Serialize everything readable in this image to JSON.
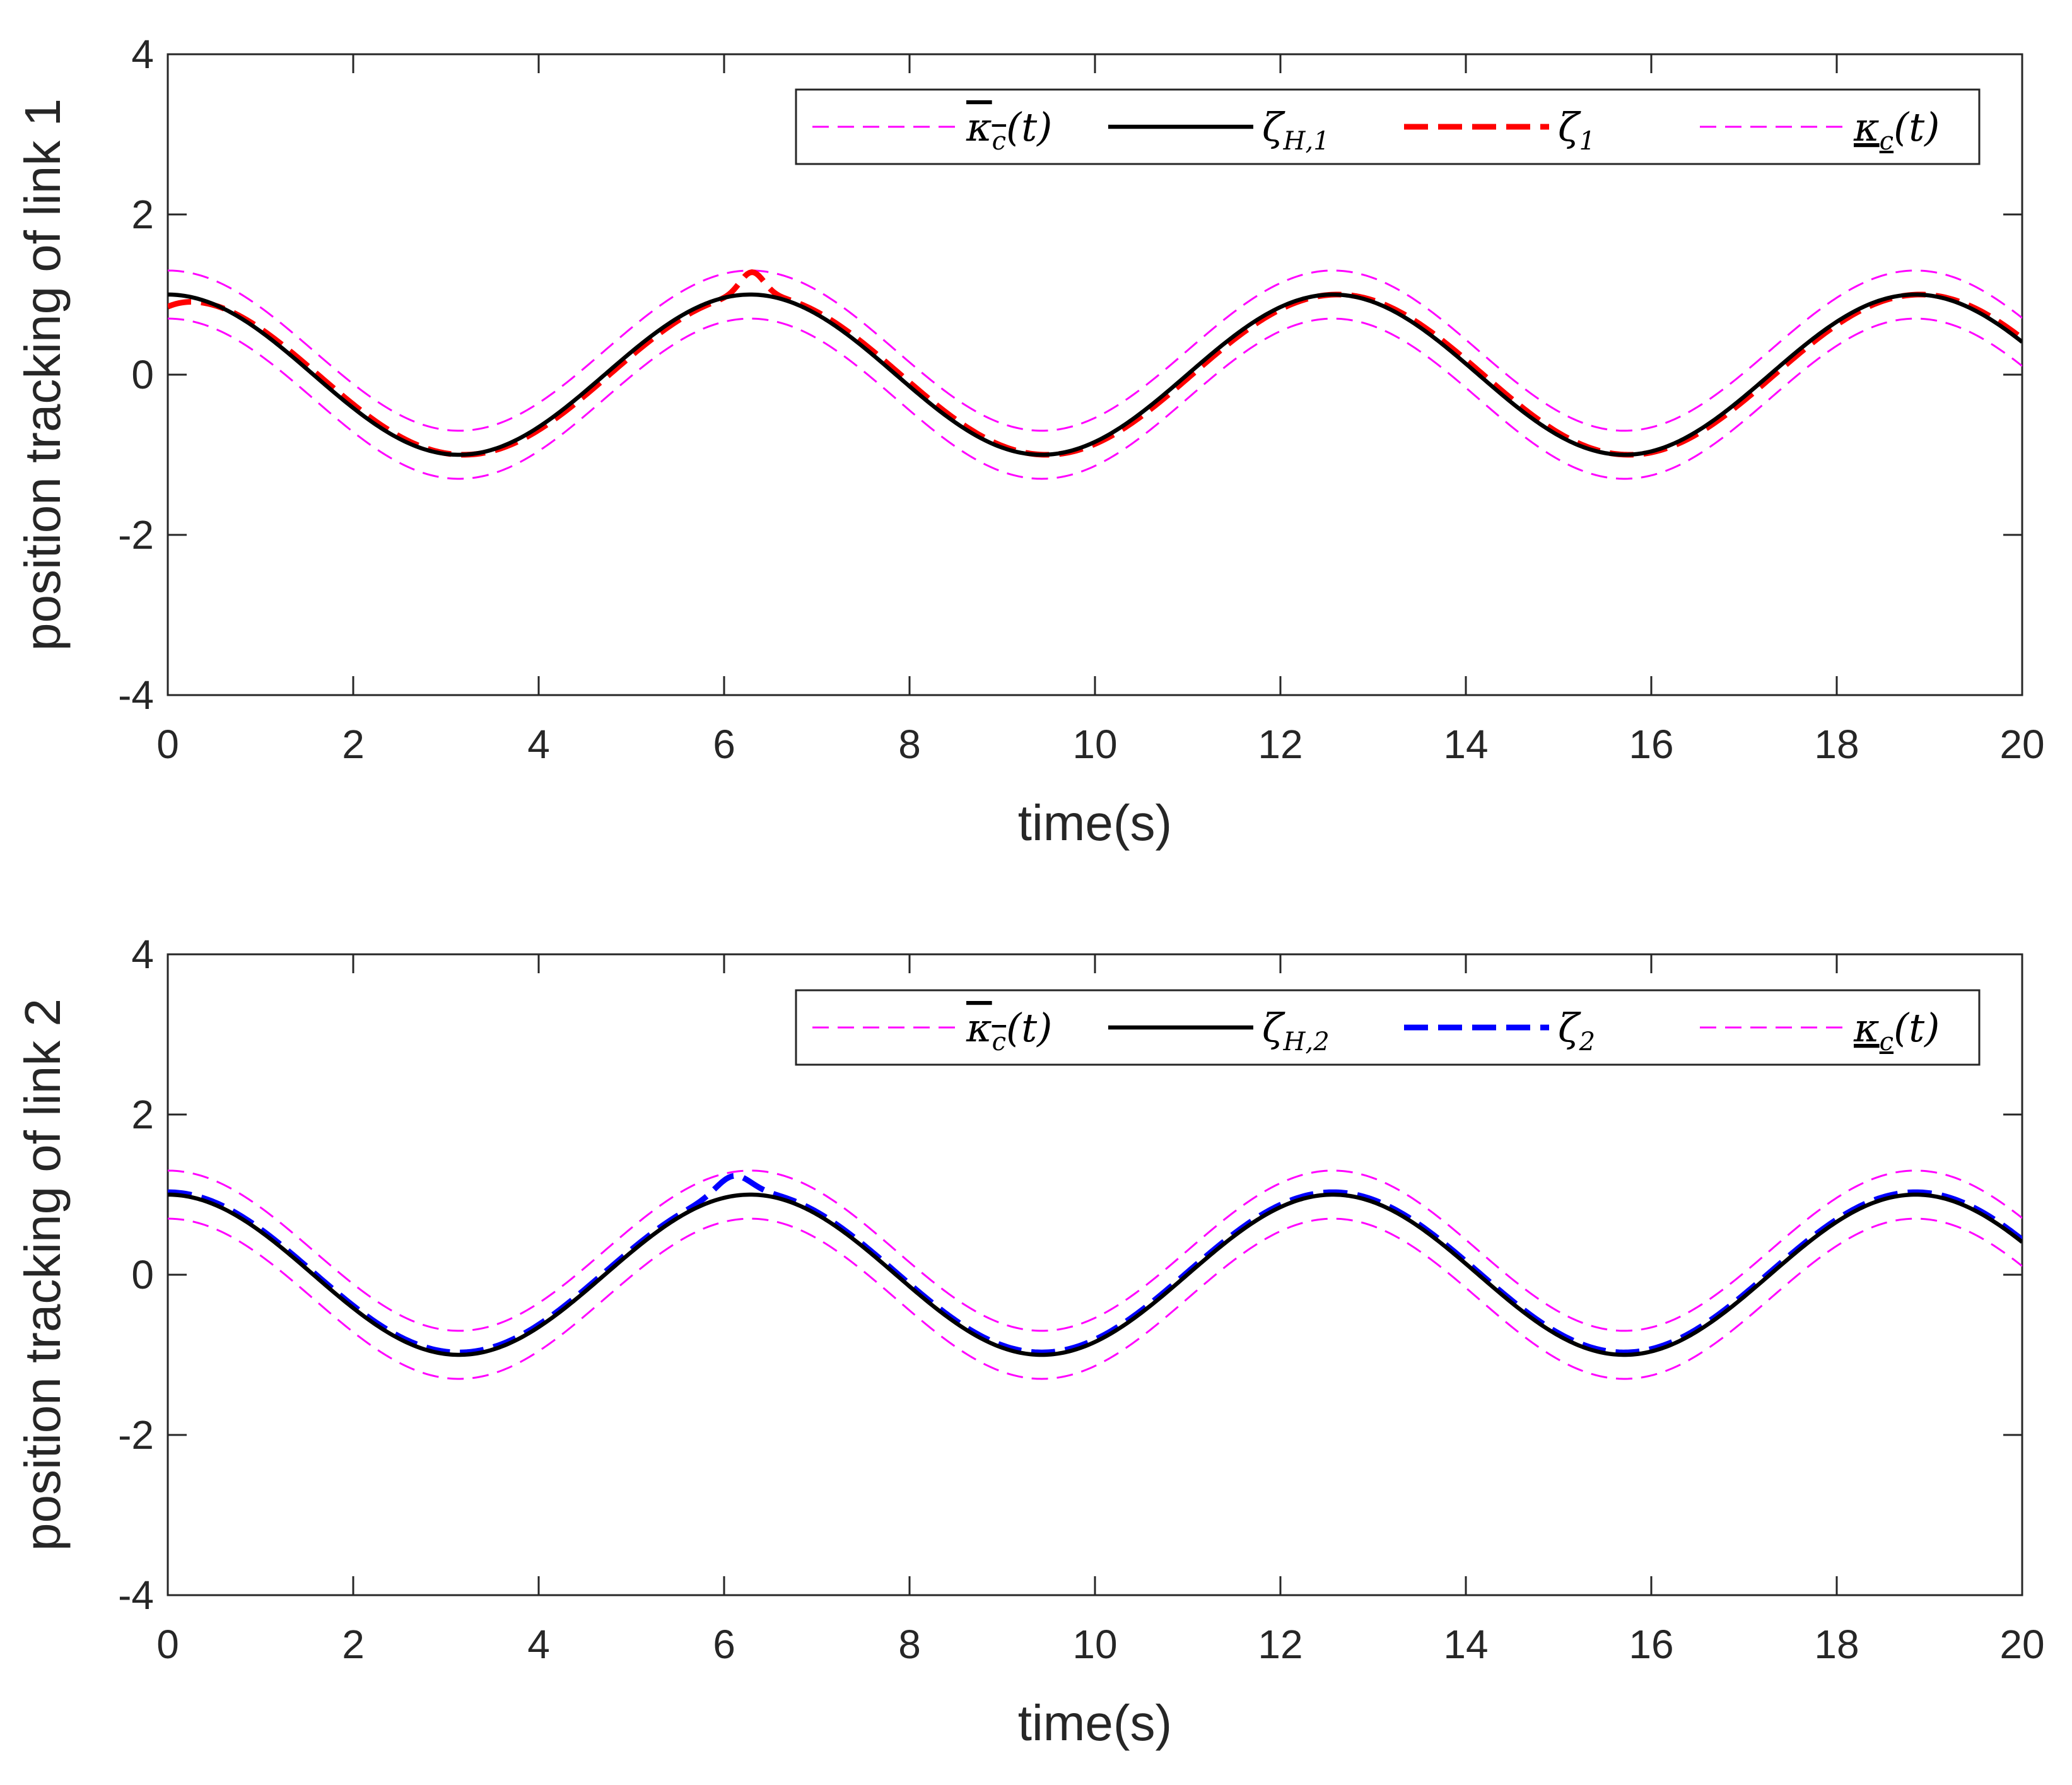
{
  "chart_data": [
    {
      "type": "line",
      "title": "",
      "xlabel": "time(s)",
      "ylabel": "position tracking of link 1",
      "xlim": [
        0,
        20
      ],
      "ylim": [
        -4,
        4
      ],
      "xticks": [
        0,
        2,
        4,
        6,
        8,
        10,
        12,
        14,
        16,
        18,
        20
      ],
      "yticks": [
        -4,
        -2,
        0,
        2,
        4
      ],
      "grid": false,
      "legend_location": "top-right",
      "x_range": [
        0,
        20
      ],
      "series": [
        {
          "name": "upper bound kappa_c(t)",
          "legend_symbol": "κ",
          "legend_sub": "c",
          "legend_suffix": "(t)",
          "legend_decoration": "overline",
          "formula": "cos(t) + 0.3",
          "style": "dashed-thin",
          "color": "#ff00ff"
        },
        {
          "name": "zeta_H,1",
          "legend_symbol": "ζ",
          "legend_sub": "H,1",
          "legend_suffix": "",
          "legend_decoration": "none",
          "formula": "cos(t)",
          "style": "solid",
          "color": "#000000"
        },
        {
          "name": "zeta_1",
          "legend_symbol": "ζ",
          "legend_sub": "1",
          "legend_suffix": "",
          "legend_decoration": "none",
          "formula": "cos(t - 0.05) with peak deviation near t=6.3",
          "style": "dash-dot-thick",
          "color": "#ff0000"
        },
        {
          "name": "lower bound kappa_c(t)",
          "legend_symbol": "κ",
          "legend_sub": "c",
          "legend_suffix": "(t)",
          "legend_decoration": "underline",
          "formula": "cos(t) - 0.3",
          "style": "dashed-thin",
          "color": "#ff00ff"
        }
      ],
      "sample_points": {
        "x": [
          0,
          3.14,
          6.28,
          9.42,
          12.57,
          15.71,
          18.85,
          20
        ],
        "reference": [
          1.0,
          -1.0,
          1.0,
          -1.0,
          1.0,
          -1.0,
          1.0,
          0.41
        ],
        "upper": [
          1.3,
          -0.7,
          1.3,
          -0.7,
          1.3,
          -0.7,
          1.3,
          0.71
        ],
        "lower": [
          0.7,
          -1.3,
          0.7,
          -1.3,
          0.7,
          -1.3,
          0.7,
          0.11
        ],
        "actual": [
          0.85,
          -1.02,
          1.28,
          -1.02,
          1.0,
          -1.02,
          1.0,
          0.42
        ]
      }
    },
    {
      "type": "line",
      "title": "",
      "xlabel": "time(s)",
      "ylabel": "position tracking of link 2",
      "xlim": [
        0,
        20
      ],
      "ylim": [
        -4,
        4
      ],
      "xticks": [
        0,
        2,
        4,
        6,
        8,
        10,
        12,
        14,
        16,
        18,
        20
      ],
      "yticks": [
        -4,
        -2,
        0,
        2,
        4
      ],
      "grid": false,
      "legend_location": "top-right",
      "x_range": [
        0,
        20
      ],
      "series": [
        {
          "name": "upper bound kappa_c(t)",
          "legend_symbol": "κ",
          "legend_sub": "c",
          "legend_suffix": "(t)",
          "legend_decoration": "overline",
          "formula": "cos(t) + 0.3",
          "style": "dashed-thin",
          "color": "#ff00ff"
        },
        {
          "name": "zeta_H,2",
          "legend_symbol": "ζ",
          "legend_sub": "H,2",
          "legend_suffix": "",
          "legend_decoration": "none",
          "formula": "cos(t)",
          "style": "solid",
          "color": "#000000"
        },
        {
          "name": "zeta_2",
          "legend_symbol": "ζ",
          "legend_sub": "2",
          "legend_suffix": "",
          "legend_decoration": "none",
          "formula": "cos(t) with overshoot near t=5.9-6.4",
          "style": "dash-dot-thick",
          "color": "#0000ff"
        },
        {
          "name": "lower bound kappa_c(t)",
          "legend_symbol": "κ",
          "legend_sub": "c",
          "legend_suffix": "(t)",
          "legend_decoration": "underline",
          "formula": "cos(t) - 0.3",
          "style": "dashed-thin",
          "color": "#ff00ff"
        }
      ],
      "sample_points": {
        "x": [
          0,
          3.14,
          6.1,
          6.28,
          9.42,
          12.57,
          15.71,
          18.85,
          20
        ],
        "reference": [
          1.0,
          -1.0,
          0.98,
          1.0,
          -1.0,
          1.0,
          -1.0,
          1.0,
          0.41
        ],
        "upper": [
          1.3,
          -0.7,
          1.28,
          1.3,
          -0.7,
          1.3,
          -0.7,
          1.3,
          0.71
        ],
        "lower": [
          0.7,
          -1.3,
          0.68,
          0.7,
          -1.3,
          0.7,
          -1.3,
          0.7,
          0.11
        ],
        "actual": [
          1.03,
          -0.98,
          1.2,
          1.22,
          -0.98,
          1.03,
          -0.98,
          1.03,
          0.42
        ]
      }
    }
  ]
}
